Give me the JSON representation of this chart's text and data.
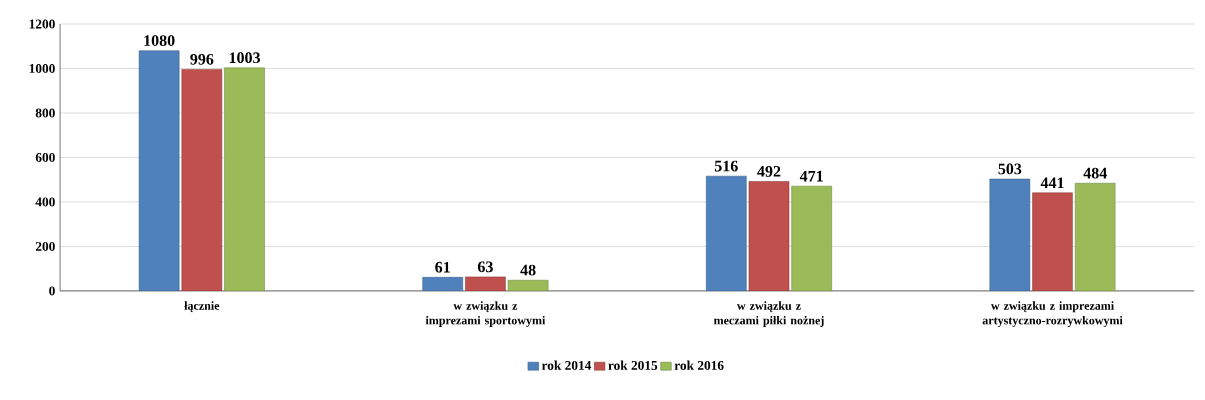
{
  "chart_data": {
    "type": "bar",
    "categories": [
      "łącznie",
      "w związku z imprezami sportowymi",
      "w związku z meczami piłki nożnej",
      "w związku z imprezami artystyczno-rozrywkowymi"
    ],
    "series": [
      {
        "name": "rok 2014",
        "color": "#4f81bd",
        "values": [
          1080,
          61,
          516,
          503
        ]
      },
      {
        "name": "rok 2015",
        "color": "#c0504d",
        "values": [
          996,
          63,
          492,
          441
        ]
      },
      {
        "name": "rok 2016",
        "color": "#9bbb59",
        "values": [
          1003,
          48,
          471,
          484
        ]
      }
    ],
    "ylim": [
      0,
      1200
    ],
    "yticks": [
      0,
      200,
      400,
      600,
      800,
      1000,
      1200
    ],
    "grid": "y",
    "legend": "bottom",
    "data_labels": true
  }
}
